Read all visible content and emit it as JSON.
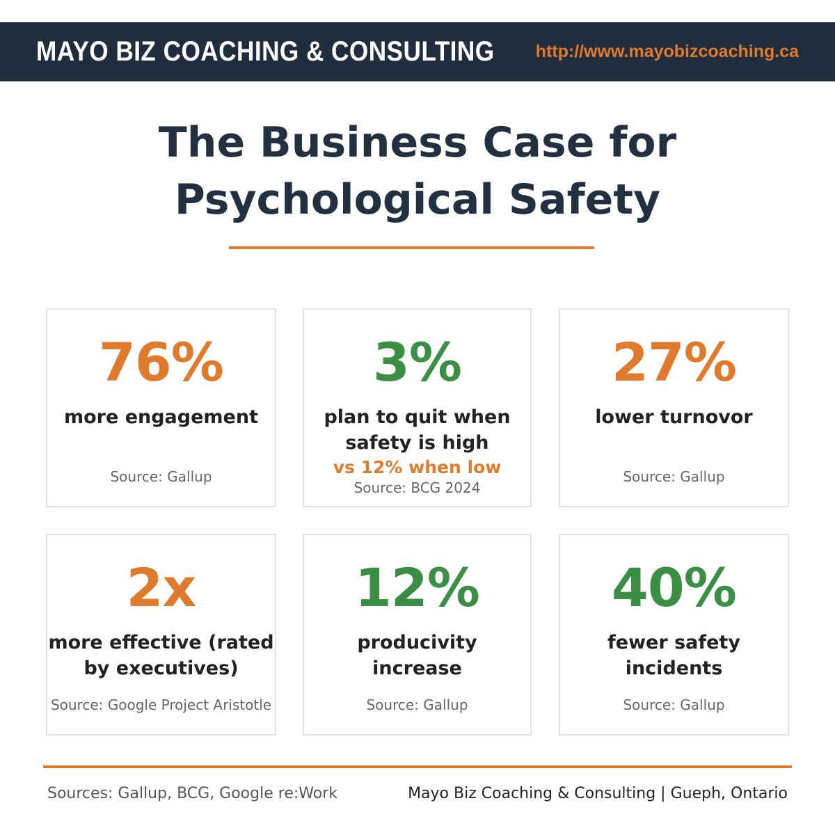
{
  "header": {
    "brand": "MAYO BIZ COACHING & CONSULTING",
    "url": "http://www.mayobizcoaching.ca"
  },
  "title": [
    "The Business Case for",
    "Psychological Safety"
  ],
  "cards": [
    {
      "stat": "76%",
      "color": "#e07b2e",
      "desc": [
        "more engagement"
      ],
      "source": "Source: Gallup"
    },
    {
      "stat": "3%",
      "color": "#3a8f45",
      "desc": [
        "plan to quit when",
        "safety is high"
      ],
      "note": "vs 12% when low",
      "source": "Source: BCG 2024"
    },
    {
      "stat": "27%",
      "color": "#e07b2e",
      "desc": [
        "lower turnovor"
      ],
      "source": "Source: Gallup"
    },
    {
      "stat": "2x",
      "color": "#e07b2e",
      "desc": [
        "more effective (rated",
        "by executives)"
      ],
      "source": "Source: Google Project Aristotle"
    },
    {
      "stat": "12%",
      "color": "#3a8f45",
      "desc": [
        "producivity",
        "increase"
      ],
      "source": "Source: Gallup"
    },
    {
      "stat": "40%",
      "color": "#3a8f45",
      "desc": [
        "fewer safety",
        "incidents"
      ],
      "source": "Source: Gallup"
    }
  ],
  "footer": {
    "sources": "Sources: Gallup, BCG, Google re:Work",
    "credit": "Mayo Biz Coaching & Consulting | Gueph, Ontario"
  }
}
